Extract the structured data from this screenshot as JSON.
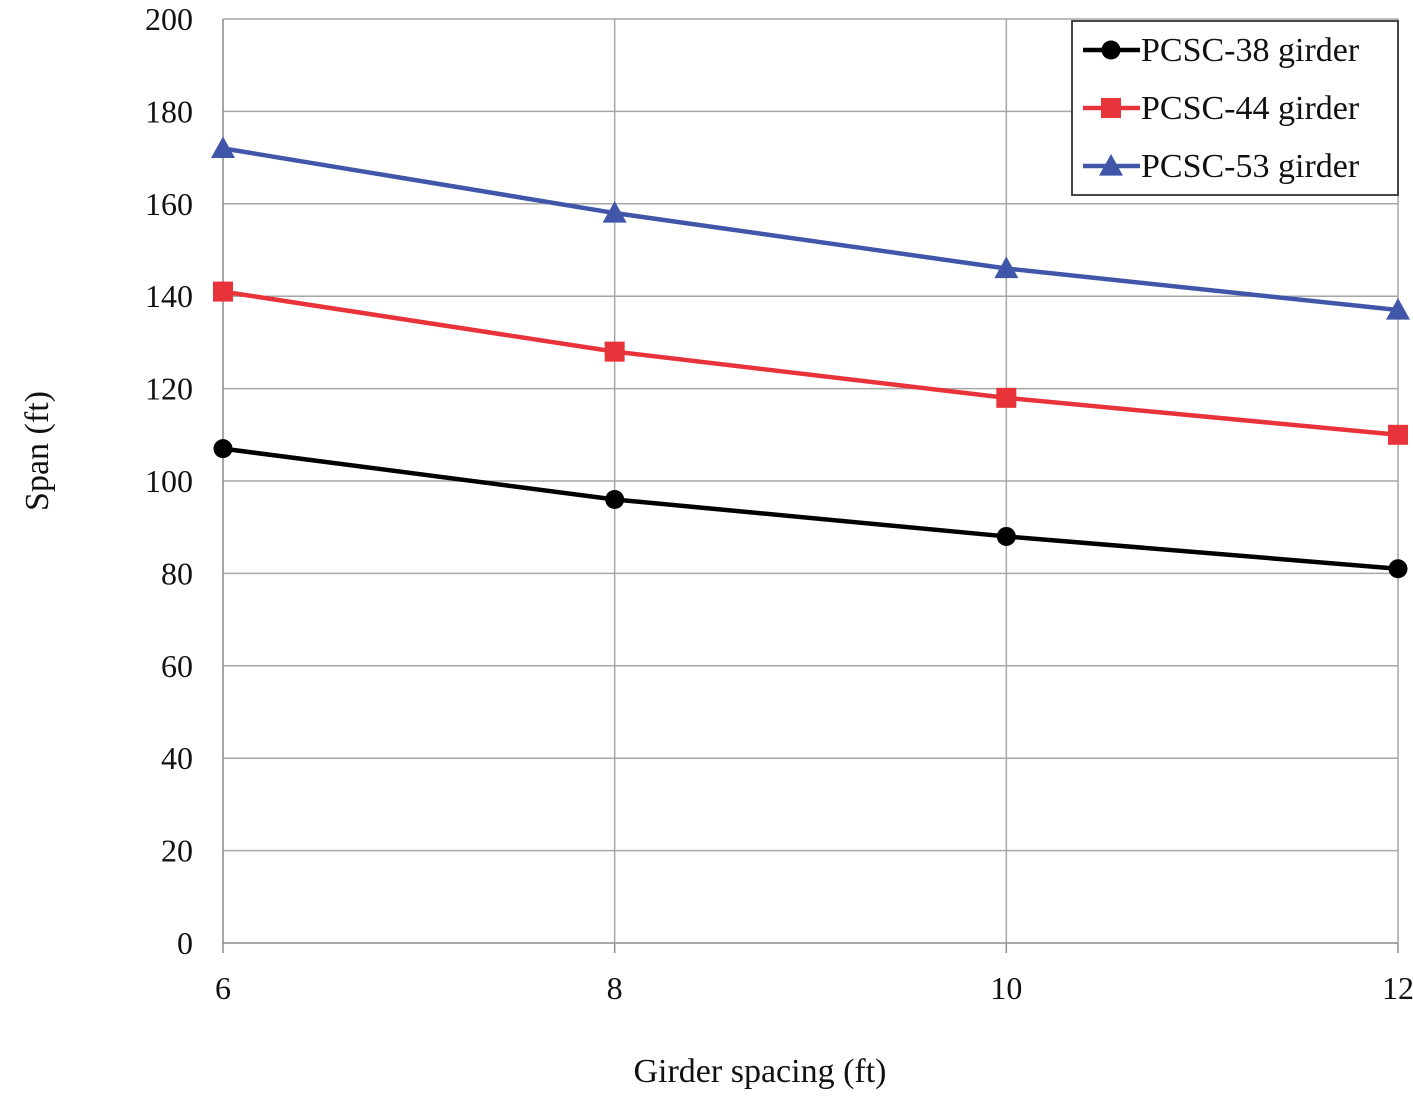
{
  "chart_data": {
    "type": "line",
    "title": "",
    "xlabel": "Girder spacing (ft)",
    "ylabel": "Span (ft)",
    "x": [
      6,
      8,
      10,
      12
    ],
    "xlim": [
      6,
      12
    ],
    "ylim": [
      0,
      200
    ],
    "x_ticks": [
      "6",
      "8",
      "10",
      "12"
    ],
    "y_ticks": [
      "0",
      "20",
      "40",
      "60",
      "80",
      "100",
      "120",
      "140",
      "160",
      "180",
      "200"
    ],
    "grid": true,
    "legend_position": "top-right",
    "series": [
      {
        "name": "PCSC-38 girder",
        "values": [
          107,
          96,
          88,
          81
        ],
        "color": "#000000",
        "marker": "circle"
      },
      {
        "name": "PCSC-44 girder",
        "values": [
          141,
          128,
          118,
          110
        ],
        "color": "#e8333a",
        "marker": "square"
      },
      {
        "name": "PCSC-53 girder",
        "values": [
          172,
          158,
          146,
          137
        ],
        "color": "#4056a8",
        "marker": "triangle"
      }
    ]
  }
}
